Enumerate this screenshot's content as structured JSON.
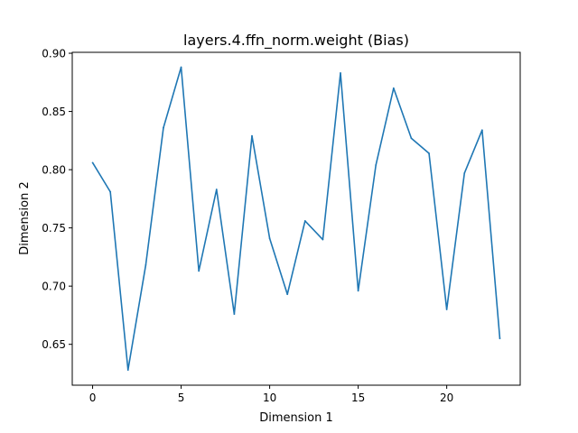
{
  "chart_data": {
    "type": "line",
    "title": "layers.4.ffn_norm.weight (Bias)",
    "xlabel": "Dimension 1",
    "ylabel": "Dimension 2",
    "xlim": [
      -1.15,
      24.15
    ],
    "ylim": [
      0.6149,
      0.9008
    ],
    "xticks": [
      0,
      5,
      10,
      15,
      20
    ],
    "xtick_labels": [
      "0",
      "5",
      "10",
      "15",
      "20"
    ],
    "yticks": [
      0.65,
      0.7,
      0.75,
      0.8,
      0.85,
      0.9
    ],
    "ytick_labels": [
      "0.65",
      "0.70",
      "0.75",
      "0.80",
      "0.85",
      "0.90"
    ],
    "grid": false,
    "series": [
      {
        "color": "#1f77b4",
        "x": [
          0,
          1,
          2,
          3,
          4,
          5,
          6,
          7,
          8,
          9,
          10,
          11,
          12,
          13,
          14,
          15,
          16,
          17,
          18,
          19,
          20,
          21,
          22,
          23
        ],
        "values": [
          0.806,
          0.781,
          0.628,
          0.718,
          0.836,
          0.888,
          0.713,
          0.783,
          0.676,
          0.829,
          0.741,
          0.693,
          0.756,
          0.74,
          0.883,
          0.696,
          0.804,
          0.87,
          0.827,
          0.814,
          0.68,
          0.797,
          0.834,
          0.655
        ]
      }
    ]
  }
}
